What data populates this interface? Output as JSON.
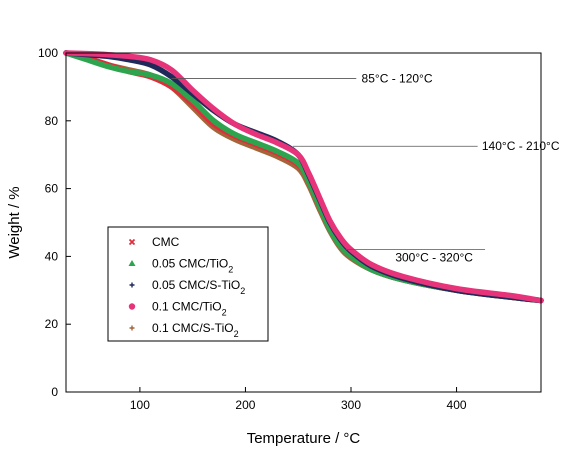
{
  "chart_data": {
    "type": "line",
    "xlabel": "Temperature / °C",
    "ylabel": "Weight / %",
    "xlim": [
      30,
      480
    ],
    "ylim": [
      0,
      100
    ],
    "x_ticks": [
      100,
      200,
      300,
      400
    ],
    "y_ticks": [
      0,
      20,
      40,
      60,
      80,
      100
    ],
    "grid": false,
    "legend_position": "lower-left",
    "series": [
      {
        "name": "CMC",
        "name_main": "CMC",
        "name_sub": "",
        "name_tail": "",
        "color": "#e02d3c",
        "marker": "x-mark",
        "x": [
          30,
          50,
          70,
          90,
          110,
          130,
          150,
          170,
          190,
          210,
          230,
          250,
          260,
          270,
          280,
          290,
          300,
          320,
          350,
          400,
          450,
          480
        ],
        "y": [
          100,
          98.5,
          96.5,
          94.5,
          93,
          90,
          85,
          79,
          75.5,
          73,
          70.5,
          67,
          62,
          55,
          48,
          43,
          40,
          36,
          33,
          30,
          28,
          27
        ]
      },
      {
        "name": "0.05 CMC/TiO2",
        "name_main": "0.05 CMC/TiO",
        "name_sub": "2",
        "name_tail": "",
        "color": "#2ea44f",
        "marker": "triangle",
        "x": [
          30,
          50,
          70,
          90,
          110,
          130,
          150,
          170,
          190,
          210,
          230,
          250,
          260,
          270,
          280,
          290,
          300,
          320,
          350,
          400,
          450,
          480
        ],
        "y": [
          100,
          98,
          96,
          94.5,
          93.5,
          91,
          86,
          80,
          76,
          73.5,
          71,
          67.5,
          62,
          55,
          48,
          43,
          40,
          36,
          33,
          30,
          28,
          27
        ]
      },
      {
        "name": "0.05 CMC/S-TiO2",
        "name_main": "0.05 CMC/S-TiO",
        "name_sub": "2",
        "name_tail": "",
        "color": "#1f2a5a",
        "marker": "plus",
        "x": [
          30,
          50,
          70,
          90,
          110,
          130,
          150,
          170,
          190,
          210,
          230,
          250,
          260,
          270,
          280,
          290,
          300,
          320,
          350,
          400,
          450,
          480
        ],
        "y": [
          100,
          99.5,
          99,
          98,
          96.5,
          93,
          88,
          83,
          79,
          76.5,
          74,
          70,
          64,
          57,
          50,
          45,
          41.5,
          37,
          33.5,
          30,
          28,
          27
        ]
      },
      {
        "name": "0.1 CMC/TiO2",
        "name_main": "0.1 CMC/TiO",
        "name_sub": "2",
        "name_tail": "",
        "color": "#e6337a",
        "marker": "circle",
        "x": [
          30,
          50,
          70,
          90,
          110,
          130,
          150,
          170,
          190,
          210,
          230,
          250,
          260,
          270,
          280,
          290,
          300,
          320,
          350,
          400,
          450,
          480
        ],
        "y": [
          100,
          99.8,
          99.5,
          99,
          98,
          95,
          89,
          83.5,
          79,
          76,
          73.5,
          70,
          64.5,
          57.5,
          50.5,
          45.5,
          42,
          37.5,
          34,
          30.5,
          28.5,
          27
        ]
      },
      {
        "name": "0.1 CMC/S-TiO2",
        "name_main": "0.1 CMC/S-TiO",
        "name_sub": "2",
        "name_tail": "",
        "color": "#a5653a",
        "marker": "plus",
        "x": [
          30,
          50,
          70,
          90,
          110,
          130,
          150,
          170,
          190,
          210,
          230,
          250,
          260,
          270,
          280,
          290,
          300,
          320,
          350,
          400,
          450,
          480
        ],
        "y": [
          100,
          98.5,
          96.5,
          95,
          93.5,
          90,
          84,
          78,
          74.5,
          72,
          69.5,
          66,
          61,
          54,
          47.5,
          42.5,
          39.5,
          36,
          33,
          30,
          28,
          27
        ]
      }
    ],
    "annotations": [
      {
        "text": "85°C - 120°C",
        "x1": 130,
        "x2": 305,
        "y": 92.5,
        "label_x": 310
      },
      {
        "text": "140°C - 210°C",
        "x1": 245,
        "x2": 420,
        "y": 72.5,
        "label_x": 424
      },
      {
        "text": "300°C - 320°C",
        "x1": 295,
        "x2": 427,
        "y": 42,
        "label_x": 342
      }
    ]
  }
}
